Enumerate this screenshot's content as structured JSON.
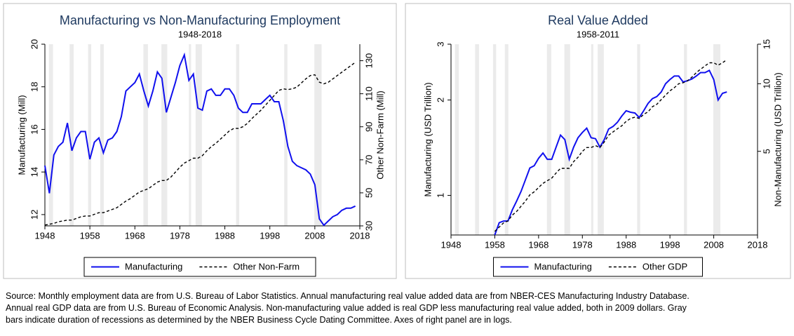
{
  "chart_data": [
    {
      "type": "line",
      "title": "Manufacturing vs Non-Manufacturing Employment",
      "subtitle": "1948-2018",
      "y_label": "Manufacturing (Mill)",
      "y2_label": "Other Non-Farm (Mill)",
      "xlim": [
        1948,
        2018
      ],
      "xticks": [
        1948,
        1958,
        1968,
        1978,
        1988,
        1998,
        2008,
        2018
      ],
      "ylim": [
        11.47,
        20
      ],
      "yticks": [
        12,
        14,
        16,
        18,
        20
      ],
      "y2lim": [
        30,
        140
      ],
      "y2ticks": [
        30,
        50,
        70,
        90,
        110,
        130
      ],
      "log_scale": false,
      "grid": false,
      "legend": "bottom",
      "recessions": [
        [
          1948.9,
          1949.8
        ],
        [
          1953.5,
          1954.4
        ],
        [
          1957.6,
          1958.3
        ],
        [
          1960.3,
          1961.1
        ],
        [
          1969.9,
          1970.9
        ],
        [
          1973.9,
          1975.2
        ],
        [
          1980.0,
          1980.5
        ],
        [
          1981.5,
          1982.9
        ],
        [
          1990.5,
          1991.2
        ],
        [
          2001.2,
          2001.9
        ],
        [
          2007.9,
          2009.5
        ]
      ],
      "x": [
        1948,
        1949,
        1950,
        1951,
        1952,
        1953,
        1954,
        1955,
        1956,
        1957,
        1958,
        1959,
        1960,
        1961,
        1962,
        1963,
        1964,
        1965,
        1966,
        1967,
        1968,
        1969,
        1970,
        1971,
        1972,
        1973,
        1974,
        1975,
        1976,
        1977,
        1978,
        1979,
        1980,
        1981,
        1982,
        1983,
        1984,
        1985,
        1986,
        1987,
        1988,
        1989,
        1990,
        1991,
        1992,
        1993,
        1994,
        1995,
        1996,
        1997,
        1998,
        1999,
        2000,
        2001,
        2002,
        2003,
        2004,
        2005,
        2006,
        2007,
        2008,
        2009,
        2010,
        2011,
        2012,
        2013,
        2014,
        2015,
        2016,
        2017
      ],
      "series": [
        {
          "name": "Manufacturing",
          "color": "#1010ee",
          "dash": false,
          "values": [
            14.3,
            13.0,
            14.8,
            15.2,
            15.4,
            16.3,
            15.0,
            15.6,
            15.9,
            15.9,
            14.6,
            15.4,
            15.6,
            14.9,
            15.5,
            15.6,
            15.9,
            16.6,
            17.8,
            18.0,
            18.2,
            18.6,
            17.8,
            17.1,
            17.8,
            18.7,
            18.4,
            16.8,
            17.5,
            18.2,
            19.0,
            19.5,
            18.3,
            18.6,
            17.0,
            16.9,
            17.8,
            17.9,
            17.6,
            17.6,
            17.9,
            17.9,
            17.6,
            17.0,
            16.8,
            16.8,
            17.2,
            17.2,
            17.2,
            17.4,
            17.6,
            17.3,
            17.3,
            16.4,
            15.2,
            14.5,
            14.3,
            14.2,
            14.1,
            13.9,
            13.4,
            11.8,
            11.5,
            11.7,
            11.9,
            12.0,
            12.2,
            12.3,
            12.3,
            12.4
          ]
        },
        {
          "name": "Other Non-Farm",
          "color": "#000000",
          "dash": true,
          "axis": "y2",
          "values": [
            30.5,
            31,
            31.5,
            32.5,
            33,
            33.5,
            33.5,
            34.5,
            35.5,
            36,
            36,
            37,
            38,
            38,
            39,
            40,
            41,
            43,
            45,
            46.5,
            48.5,
            50.5,
            51.5,
            52.5,
            54.5,
            56.5,
            57.5,
            57.5,
            59.5,
            62.5,
            65.5,
            68,
            69.5,
            71,
            71,
            72.5,
            75.5,
            78,
            80,
            82.5,
            85,
            87.5,
            89,
            89,
            90,
            92,
            95,
            97.5,
            100,
            103,
            106,
            109,
            112,
            113,
            112.5,
            113,
            114,
            116.5,
            119,
            121,
            121.5,
            117,
            116,
            117,
            119,
            121,
            123,
            125,
            127,
            129
          ]
        }
      ]
    },
    {
      "type": "line",
      "title": "Real Value Added",
      "subtitle": "1958-2011",
      "y_label": "Manufacturing (USD Trillion)",
      "y2_label": "Non-Manufacturing (USD Trillion)",
      "xlim": [
        1948,
        2018
      ],
      "xticks": [
        1948,
        1958,
        1968,
        1978,
        1988,
        1998,
        2008,
        2018
      ],
      "ylim": [
        0.75,
        3
      ],
      "yticks": [
        1,
        2,
        3
      ],
      "y2lim": [
        2.12,
        15
      ],
      "y2ticks": [
        5,
        10,
        15
      ],
      "log_scale": true,
      "grid": false,
      "legend": "bottom",
      "recessions": [
        [
          1948.9,
          1949.8
        ],
        [
          1953.5,
          1954.4
        ],
        [
          1957.6,
          1958.3
        ],
        [
          1960.3,
          1961.1
        ],
        [
          1969.9,
          1970.9
        ],
        [
          1973.9,
          1975.2
        ],
        [
          1980.0,
          1980.5
        ],
        [
          1981.5,
          1982.9
        ],
        [
          1990.5,
          1991.2
        ],
        [
          2001.2,
          2001.9
        ],
        [
          2007.9,
          2009.5
        ]
      ],
      "x": [
        1958,
        1959,
        1960,
        1961,
        1962,
        1963,
        1964,
        1965,
        1966,
        1967,
        1968,
        1969,
        1970,
        1971,
        1972,
        1973,
        1974,
        1975,
        1976,
        1977,
        1978,
        1979,
        1980,
        1981,
        1982,
        1983,
        1984,
        1985,
        1986,
        1987,
        1988,
        1989,
        1990,
        1991,
        1992,
        1993,
        1994,
        1995,
        1996,
        1997,
        1998,
        1999,
        2000,
        2001,
        2002,
        2003,
        2004,
        2005,
        2006,
        2007,
        2008,
        2009,
        2010,
        2011
      ],
      "series": [
        {
          "name": "Manufacturing",
          "color": "#1010ee",
          "dash": false,
          "values": [
            0.75,
            0.82,
            0.83,
            0.83,
            0.9,
            0.96,
            1.03,
            1.12,
            1.22,
            1.24,
            1.31,
            1.36,
            1.3,
            1.3,
            1.42,
            1.55,
            1.5,
            1.3,
            1.42,
            1.52,
            1.58,
            1.63,
            1.52,
            1.51,
            1.42,
            1.5,
            1.62,
            1.65,
            1.7,
            1.78,
            1.85,
            1.83,
            1.82,
            1.76,
            1.85,
            1.95,
            2.02,
            2.05,
            2.12,
            2.25,
            2.32,
            2.38,
            2.38,
            2.28,
            2.3,
            2.33,
            2.38,
            2.44,
            2.44,
            2.48,
            2.32,
            2.0,
            2.1,
            2.12
          ]
        },
        {
          "name": "Other GDP",
          "color": "#000000",
          "dash": true,
          "axis": "y2",
          "values": [
            2.2,
            2.3,
            2.4,
            2.45,
            2.6,
            2.7,
            2.85,
            3.0,
            3.2,
            3.3,
            3.45,
            3.6,
            3.7,
            3.8,
            4.0,
            4.2,
            4.2,
            4.2,
            4.5,
            4.7,
            5.0,
            5.2,
            5.2,
            5.3,
            5.2,
            5.5,
            5.9,
            6.1,
            6.3,
            6.5,
            6.8,
            7.0,
            7.1,
            7.0,
            7.3,
            7.5,
            7.9,
            8.1,
            8.5,
            8.9,
            9.3,
            9.6,
            10.0,
            10.1,
            10.3,
            10.7,
            11.2,
            11.6,
            12.0,
            12.4,
            12.4,
            12.1,
            12.4,
            12.8
          ]
        }
      ]
    }
  ],
  "source_lines": [
    "Source: Monthly employment data are from U.S. Bureau of Labor Statistics. Annual manufacturing real value added data are from NBER-CES Manufacturing Industry Database.",
    "Annual real GDP data are from U.S. Bureau of Economic Analysis. Non-manufacturing value added is real GDP less manufacturing real value added, both in 2009 dollars. Gray",
    "bars indicate duration of recessions as determined by the NBER Business Cycle Dating Committee. Axes of right panel are in logs."
  ]
}
